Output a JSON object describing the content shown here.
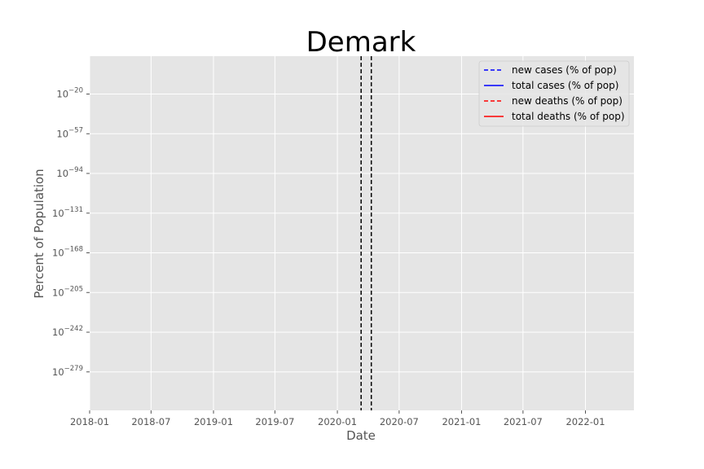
{
  "chart_data": {
    "type": "line",
    "title": "Demark",
    "xlabel": "Date",
    "ylabel": "Percent of Population",
    "y_scale": "log",
    "grid": true,
    "legend_position": "top-right",
    "x_ticks": [
      "2018-01",
      "2018-07",
      "2019-01",
      "2019-07",
      "2020-01",
      "2020-07",
      "2021-01",
      "2021-07",
      "2022-01"
    ],
    "y_ticks": [
      {
        "base": "10",
        "exp": "−20"
      },
      {
        "base": "10",
        "exp": "−57"
      },
      {
        "base": "10",
        "exp": "−94"
      },
      {
        "base": "10",
        "exp": "−131"
      },
      {
        "base": "10",
        "exp": "−168"
      },
      {
        "base": "10",
        "exp": "−205"
      },
      {
        "base": "10",
        "exp": "−242"
      },
      {
        "base": "10",
        "exp": "−279"
      }
    ],
    "series": [
      {
        "name": "new cases (% of pop)",
        "color": "#0000ff",
        "style": "dashed",
        "values": []
      },
      {
        "name": "total cases (% of pop)",
        "color": "#0000ff",
        "style": "solid",
        "values": []
      },
      {
        "name": "new deaths (% of pop)",
        "color": "#ff0000",
        "style": "dashed",
        "values": []
      },
      {
        "name": "total deaths (% of pop)",
        "color": "#ff0000",
        "style": "solid",
        "values": []
      }
    ],
    "vertical_markers": [
      {
        "date": "2020-03-11",
        "color": "#000000",
        "style": "dashed"
      },
      {
        "date": "2020-04-10",
        "color": "#000000",
        "style": "dashed"
      }
    ]
  }
}
